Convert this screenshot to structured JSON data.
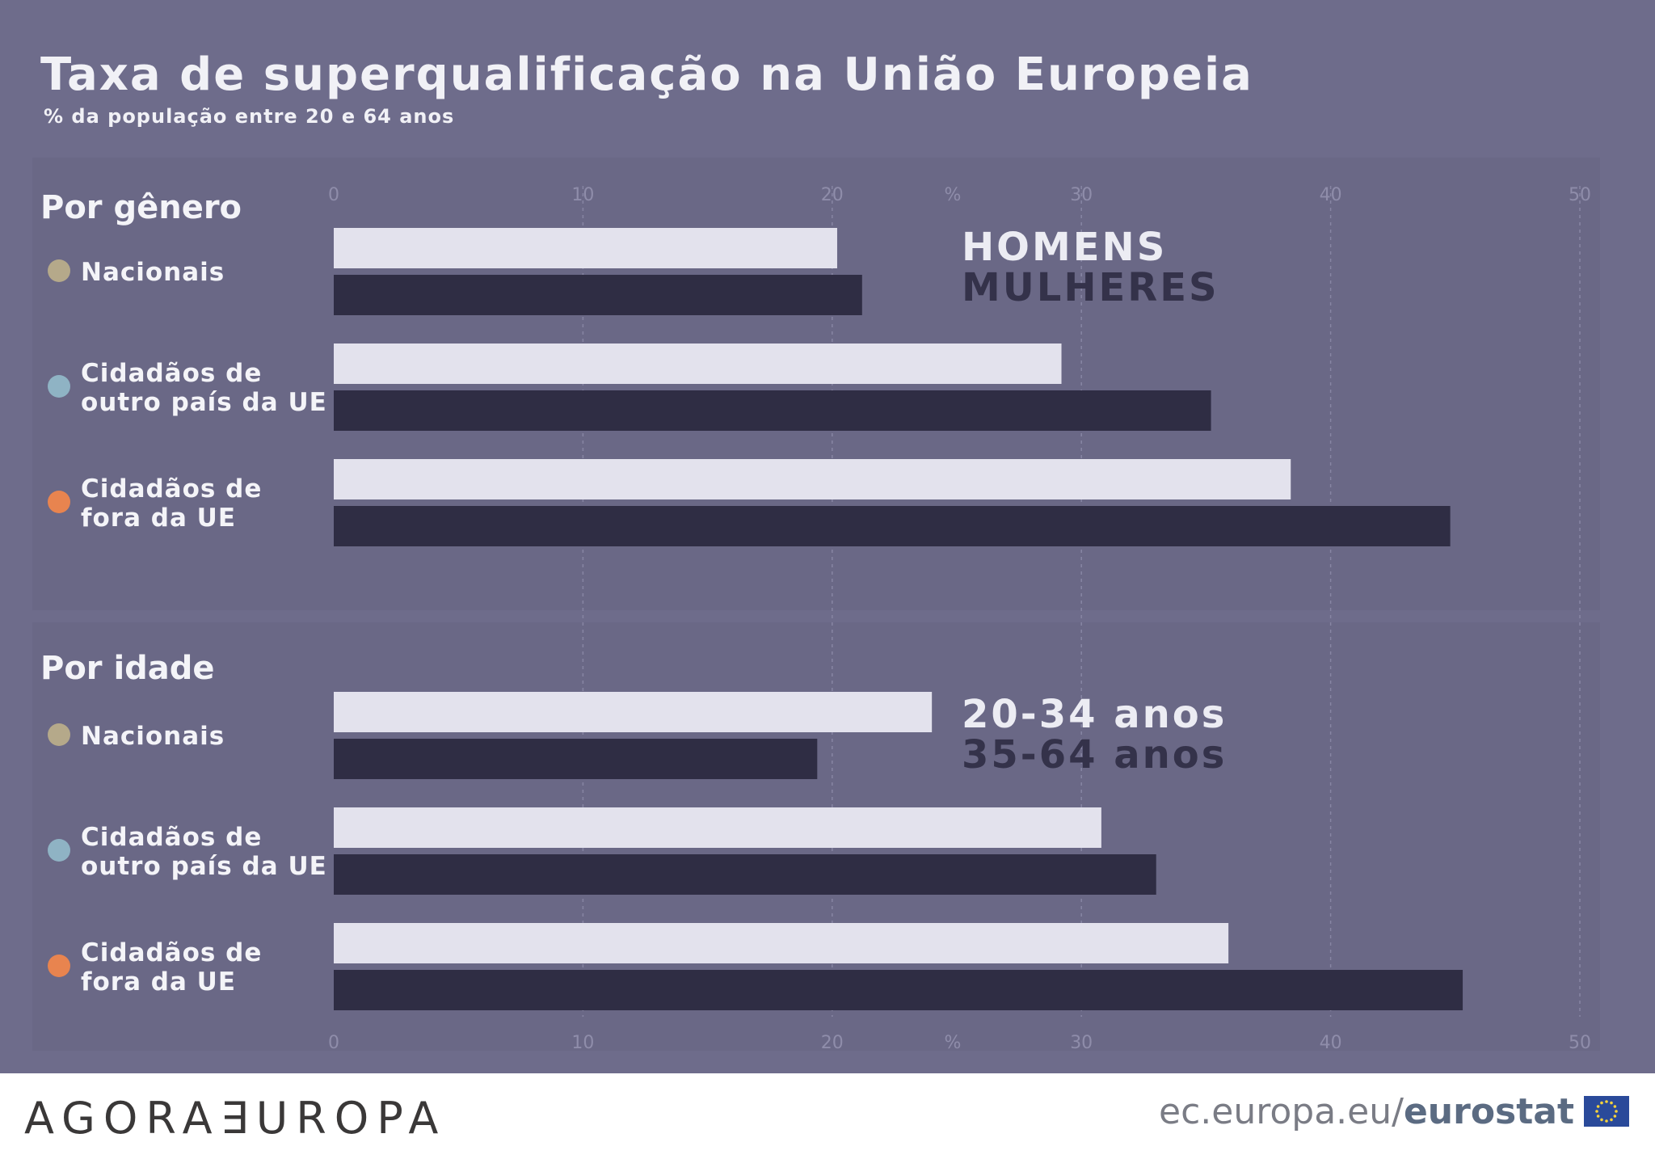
{
  "title": "Taxa de superqualificação na União Europeia",
  "subtitle": "% da população entre 20 e 64 anos",
  "footer": {
    "brand": "AGORA∃UROPA",
    "source_prefix": "ec.europa.eu/",
    "source_bold": "eurostat"
  },
  "chart_data": [
    {
      "type": "bar",
      "title": "Por gênero",
      "orientation": "horizontal",
      "axis_unit": "%",
      "xlim": [
        0,
        50
      ],
      "ticks": [
        0,
        10,
        20,
        30,
        40,
        50
      ],
      "categories": [
        "Nacionais",
        "Cidadãos de outro país da UE",
        "Cidadãos de fora da UE"
      ],
      "category_lines": [
        [
          "Nacionais"
        ],
        [
          "Cidadãos de",
          "outro país da UE"
        ],
        [
          "Cidadãos de",
          "fora da UE"
        ]
      ],
      "category_colors": [
        "#b5a98a",
        "#8fb3c4",
        "#e8844f"
      ],
      "series": [
        {
          "name": "HOMENS",
          "color": "#e3e2ed",
          "values": [
            20.2,
            29.2,
            38.4
          ]
        },
        {
          "name": "MULHERES",
          "color": "#2f2d44",
          "values": [
            21.2,
            35.2,
            44.8
          ]
        }
      ]
    },
    {
      "type": "bar",
      "title": "Por idade",
      "orientation": "horizontal",
      "axis_unit": "%",
      "xlim": [
        0,
        50
      ],
      "ticks": [
        0,
        10,
        20,
        30,
        40,
        50
      ],
      "categories": [
        "Nacionais",
        "Cidadãos de outro país da UE",
        "Cidadãos de fora da UE"
      ],
      "category_lines": [
        [
          "Nacionais"
        ],
        [
          "Cidadãos de",
          "outro país da UE"
        ],
        [
          "Cidadãos de",
          "fora da UE"
        ]
      ],
      "category_colors": [
        "#b5a98a",
        "#8fb3c4",
        "#e8844f"
      ],
      "series": [
        {
          "name": "20-34 anos",
          "color": "#e3e2ed",
          "values": [
            24.0,
            30.8,
            35.9
          ]
        },
        {
          "name": "35-64 anos",
          "color": "#2f2d44",
          "values": [
            19.4,
            33.0,
            45.3
          ]
        }
      ]
    }
  ]
}
